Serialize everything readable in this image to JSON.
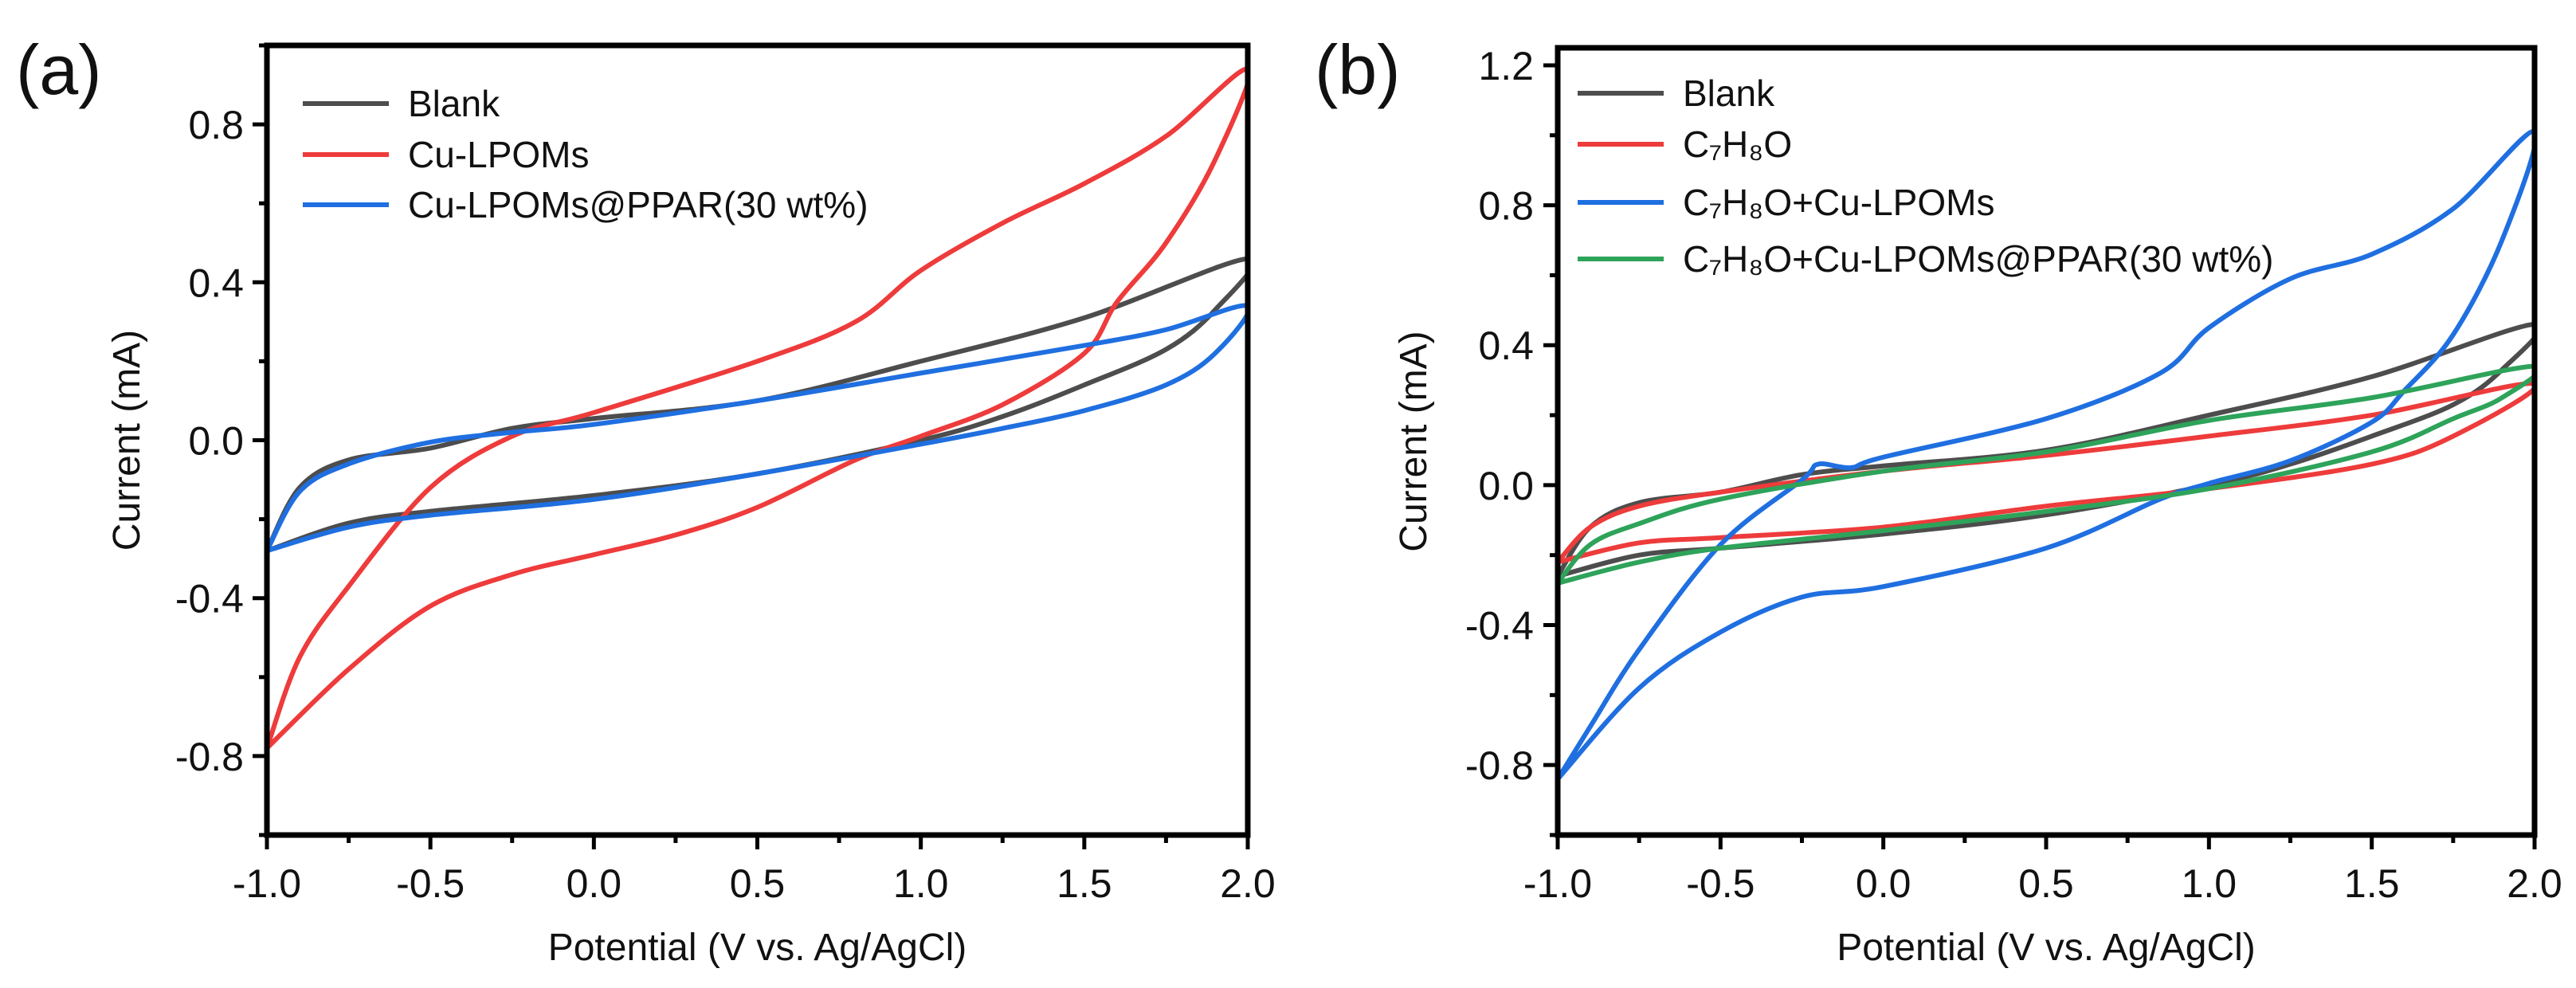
{
  "chart_data": [
    {
      "type": "line",
      "panel_label": "(a)",
      "xlabel": "Potential (V vs. Ag/AgCl)",
      "ylabel": "Current (mA)",
      "xlim": [
        -1.0,
        2.0
      ],
      "ylim": [
        -1.0,
        1.0
      ],
      "xticks": [
        "-1.0",
        "-0.5",
        "0.0",
        "0.5",
        "1.0",
        "1.5",
        "2.0"
      ],
      "xtick_values": [
        -1.0,
        -0.5,
        0.0,
        0.5,
        1.0,
        1.5,
        2.0
      ],
      "yticks": [
        "-0.8",
        "-0.4",
        "0.0",
        "0.4",
        "0.8"
      ],
      "ytick_values": [
        -0.8,
        -0.4,
        0.0,
        0.4,
        0.8
      ],
      "legend_position": "top-left",
      "grid": false,
      "series": [
        {
          "name": "Blank",
          "color": "#4d4d4d",
          "x": [
            -1.0,
            -0.9,
            -0.75,
            -0.5,
            -0.25,
            0,
            0.5,
            1.0,
            1.5,
            2.0,
            1.9,
            1.75,
            1.5,
            1.25,
            1.0,
            0.5,
            0,
            -0.5,
            -0.75,
            -1.0
          ],
          "y": [
            -0.28,
            -0.12,
            -0.05,
            -0.02,
            0.03,
            0.055,
            0.1,
            0.2,
            0.31,
            0.46,
            0.33,
            0.23,
            0.14,
            0.06,
            0.0,
            -0.085,
            -0.14,
            -0.18,
            -0.21,
            -0.28
          ]
        },
        {
          "name": "Cu-LPOMs",
          "color": "#ee3b3b",
          "x": [
            -1.0,
            -0.9,
            -0.75,
            -0.5,
            -0.25,
            0,
            0.5,
            0.8,
            1.0,
            1.25,
            1.5,
            1.75,
            2.0,
            1.9,
            1.75,
            1.6,
            1.5,
            1.25,
            1.0,
            0.8,
            0.5,
            0.25,
            0,
            -0.25,
            -0.5,
            -0.75,
            -1.0
          ],
          "y": [
            -0.78,
            -0.55,
            -0.37,
            -0.12,
            0.01,
            0.07,
            0.2,
            0.3,
            0.43,
            0.55,
            0.65,
            0.77,
            0.94,
            0.71,
            0.5,
            0.35,
            0.22,
            0.09,
            0.01,
            -0.05,
            -0.17,
            -0.24,
            -0.29,
            -0.34,
            -0.42,
            -0.58,
            -0.78
          ]
        },
        {
          "name": "Cu-LPOMs@PPAR(30 wt%)",
          "color": "#1f6fe0",
          "x": [
            -1.0,
            -0.9,
            -0.75,
            -0.5,
            -0.25,
            0,
            0.5,
            1.0,
            1.5,
            1.75,
            2.0,
            1.9,
            1.75,
            1.5,
            1.25,
            1.0,
            0.5,
            0,
            -0.5,
            -0.75,
            -1.0
          ],
          "y": [
            -0.28,
            -0.13,
            -0.06,
            -0.005,
            0.02,
            0.04,
            0.1,
            0.17,
            0.24,
            0.28,
            0.34,
            0.22,
            0.14,
            0.075,
            0.03,
            -0.01,
            -0.085,
            -0.15,
            -0.19,
            -0.22,
            -0.28
          ]
        }
      ]
    },
    {
      "type": "line",
      "panel_label": "(b)",
      "xlabel": "Potential (V vs. Ag/AgCl)",
      "ylabel": "Current (mA)",
      "xlim": [
        -1.0,
        2.0
      ],
      "ylim": [
        -1.0,
        1.25
      ],
      "xticks": [
        "-1.0",
        "-0.5",
        "0.0",
        "0.5",
        "1.0",
        "1.5",
        "2.0"
      ],
      "xtick_values": [
        -1.0,
        -0.5,
        0.0,
        0.5,
        1.0,
        1.5,
        2.0
      ],
      "yticks": [
        "-0.8",
        "-0.4",
        "0.0",
        "0.4",
        "0.8",
        "1.2"
      ],
      "ytick_values": [
        -0.8,
        -0.4,
        0.0,
        0.4,
        0.8,
        1.2
      ],
      "legend_position": "top-left",
      "grid": false,
      "series": [
        {
          "name": "Blank",
          "color": "#4d4d4d",
          "x": [
            -1.0,
            -0.9,
            -0.75,
            -0.5,
            -0.25,
            0,
            0.5,
            1.0,
            1.5,
            2.0,
            1.9,
            1.75,
            1.5,
            1.25,
            1.0,
            0.5,
            0,
            -0.5,
            -0.75,
            -1.0
          ],
          "y": [
            -0.26,
            -0.12,
            -0.05,
            -0.02,
            0.03,
            0.055,
            0.1,
            0.2,
            0.31,
            0.46,
            0.33,
            0.23,
            0.14,
            0.06,
            0.0,
            -0.085,
            -0.14,
            -0.18,
            -0.2,
            -0.26
          ]
        },
        {
          "name": "C₇H₈O",
          "color": "#ee3b3b",
          "x": [
            -1.0,
            -0.9,
            -0.75,
            -0.5,
            0,
            0.5,
            1.0,
            1.5,
            2.0,
            1.75,
            1.5,
            1.0,
            0.5,
            0,
            -0.5,
            -0.75,
            -1.0
          ],
          "y": [
            -0.22,
            -0.12,
            -0.06,
            -0.02,
            0.04,
            0.085,
            0.14,
            0.2,
            0.29,
            0.14,
            0.06,
            -0.01,
            -0.06,
            -0.12,
            -0.15,
            -0.165,
            -0.22
          ]
        },
        {
          "name": "C₇H₈O+Cu-LPOMs",
          "color": "#1f6fe0",
          "x": [
            -1.0,
            -0.9,
            -0.75,
            -0.5,
            -0.25,
            -0.2,
            -0.1,
            0,
            0.5,
            0.85,
            1.0,
            1.25,
            1.5,
            1.75,
            2.0,
            1.9,
            1.75,
            1.6,
            1.5,
            1.25,
            1.0,
            0.85,
            0.5,
            0,
            -0.25,
            -0.5,
            -0.75,
            -1.0
          ],
          "y": [
            -0.84,
            -0.69,
            -0.47,
            -0.17,
            0.015,
            0.06,
            0.05,
            0.08,
            0.19,
            0.32,
            0.45,
            0.59,
            0.66,
            0.79,
            1.01,
            0.7,
            0.43,
            0.27,
            0.18,
            0.07,
            0.005,
            -0.04,
            -0.18,
            -0.29,
            -0.32,
            -0.42,
            -0.58,
            -0.84
          ]
        },
        {
          "name": "C₇H₈O+Cu-LPOMs@PPAR(30 wt%)",
          "color": "#2ea35a",
          "x": [
            -1.0,
            -0.9,
            -0.75,
            -0.5,
            0,
            0.5,
            1.0,
            1.5,
            2.0,
            1.9,
            1.75,
            1.5,
            1.0,
            0.5,
            0,
            -0.5,
            -0.75,
            -1.0
          ],
          "y": [
            -0.28,
            -0.17,
            -0.11,
            -0.04,
            0.04,
            0.095,
            0.185,
            0.25,
            0.34,
            0.25,
            0.19,
            0.095,
            -0.01,
            -0.075,
            -0.13,
            -0.18,
            -0.22,
            -0.28
          ]
        }
      ]
    }
  ]
}
